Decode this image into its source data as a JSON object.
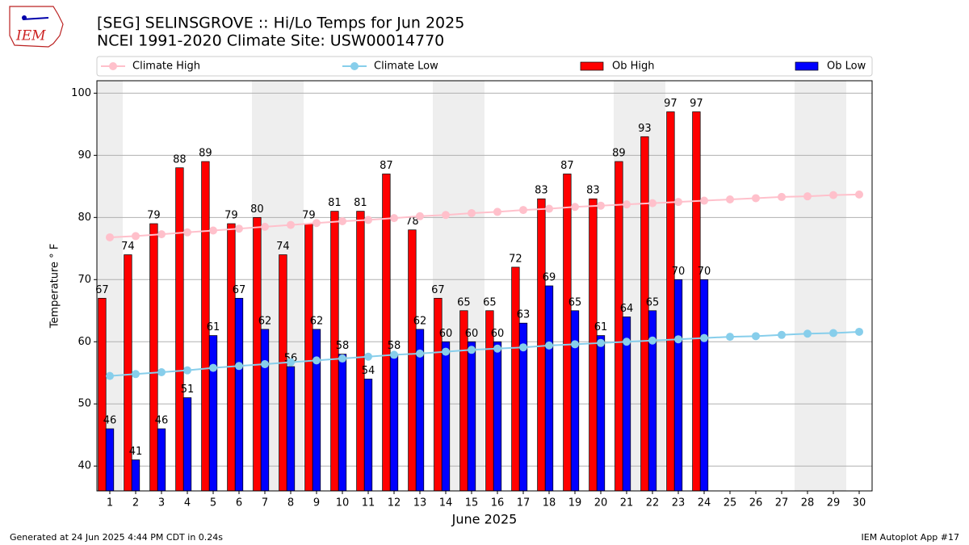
{
  "chart_data": {
    "type": "bar",
    "title": "[SEG] SELINSGROVE :: Hi/Lo Temps for Jun 2025",
    "subtitle": "NCEI 1991-2020 Climate Site: USW00014770",
    "x_label": "June 2025",
    "y_label": "Temperature ° F",
    "footer_left": "Generated at 24 Jun 2025 4:44 PM CDT in 0.24s",
    "footer_right": "IEM Autoplot App #17",
    "logo_text": "IEM",
    "x": [
      1,
      2,
      3,
      4,
      5,
      6,
      7,
      8,
      9,
      10,
      11,
      12,
      13,
      14,
      15,
      16,
      17,
      18,
      19,
      20,
      21,
      22,
      23,
      24,
      25,
      26,
      27,
      28,
      29,
      30
    ],
    "xlim": [
      0.5,
      30.5
    ],
    "xticks": [
      1,
      2,
      3,
      4,
      5,
      6,
      7,
      8,
      9,
      10,
      11,
      12,
      13,
      14,
      15,
      16,
      17,
      18,
      19,
      20,
      21,
      22,
      23,
      24,
      25,
      26,
      27,
      28,
      29,
      30
    ],
    "ylim": [
      36,
      102
    ],
    "yticks": [
      40,
      50,
      60,
      70,
      80,
      90,
      100
    ],
    "grid": true,
    "legend": "top",
    "shaded_days": [
      1,
      7,
      8,
      14,
      15,
      21,
      22,
      28,
      29
    ],
    "series": [
      {
        "name": "Climate High",
        "type": "line",
        "color": "#ffc0cb",
        "values": [
          76.8,
          77.0,
          77.3,
          77.6,
          77.9,
          78.2,
          78.5,
          78.8,
          79.1,
          79.4,
          79.6,
          79.9,
          80.2,
          80.4,
          80.7,
          80.9,
          81.2,
          81.4,
          81.7,
          81.9,
          82.1,
          82.3,
          82.5,
          82.7,
          82.9,
          83.1,
          83.3,
          83.4,
          83.6,
          83.7
        ]
      },
      {
        "name": "Climate Low",
        "type": "line",
        "color": "#87ceeb",
        "values": [
          54.5,
          54.8,
          55.1,
          55.4,
          55.8,
          56.1,
          56.4,
          56.7,
          57.0,
          57.3,
          57.6,
          57.9,
          58.1,
          58.4,
          58.7,
          58.9,
          59.1,
          59.4,
          59.6,
          59.8,
          60.0,
          60.2,
          60.4,
          60.6,
          60.8,
          60.9,
          61.1,
          61.3,
          61.4,
          61.6
        ]
      },
      {
        "name": "Ob High",
        "type": "bar",
        "color": "#ff0000",
        "values": [
          67,
          74,
          79,
          88,
          89,
          79,
          80,
          74,
          79,
          81,
          81,
          87,
          78,
          67,
          65,
          65,
          72,
          83,
          87,
          83,
          89,
          93,
          97,
          97,
          null,
          null,
          null,
          null,
          null,
          null
        ]
      },
      {
        "name": "Ob Low",
        "type": "bar",
        "color": "#0000ff",
        "values": [
          46,
          41,
          46,
          51,
          61,
          67,
          62,
          56,
          62,
          58,
          54,
          58,
          62,
          60,
          60,
          60,
          63,
          69,
          65,
          61,
          64,
          65,
          70,
          70,
          null,
          null,
          null,
          null,
          null,
          null
        ]
      }
    ]
  }
}
